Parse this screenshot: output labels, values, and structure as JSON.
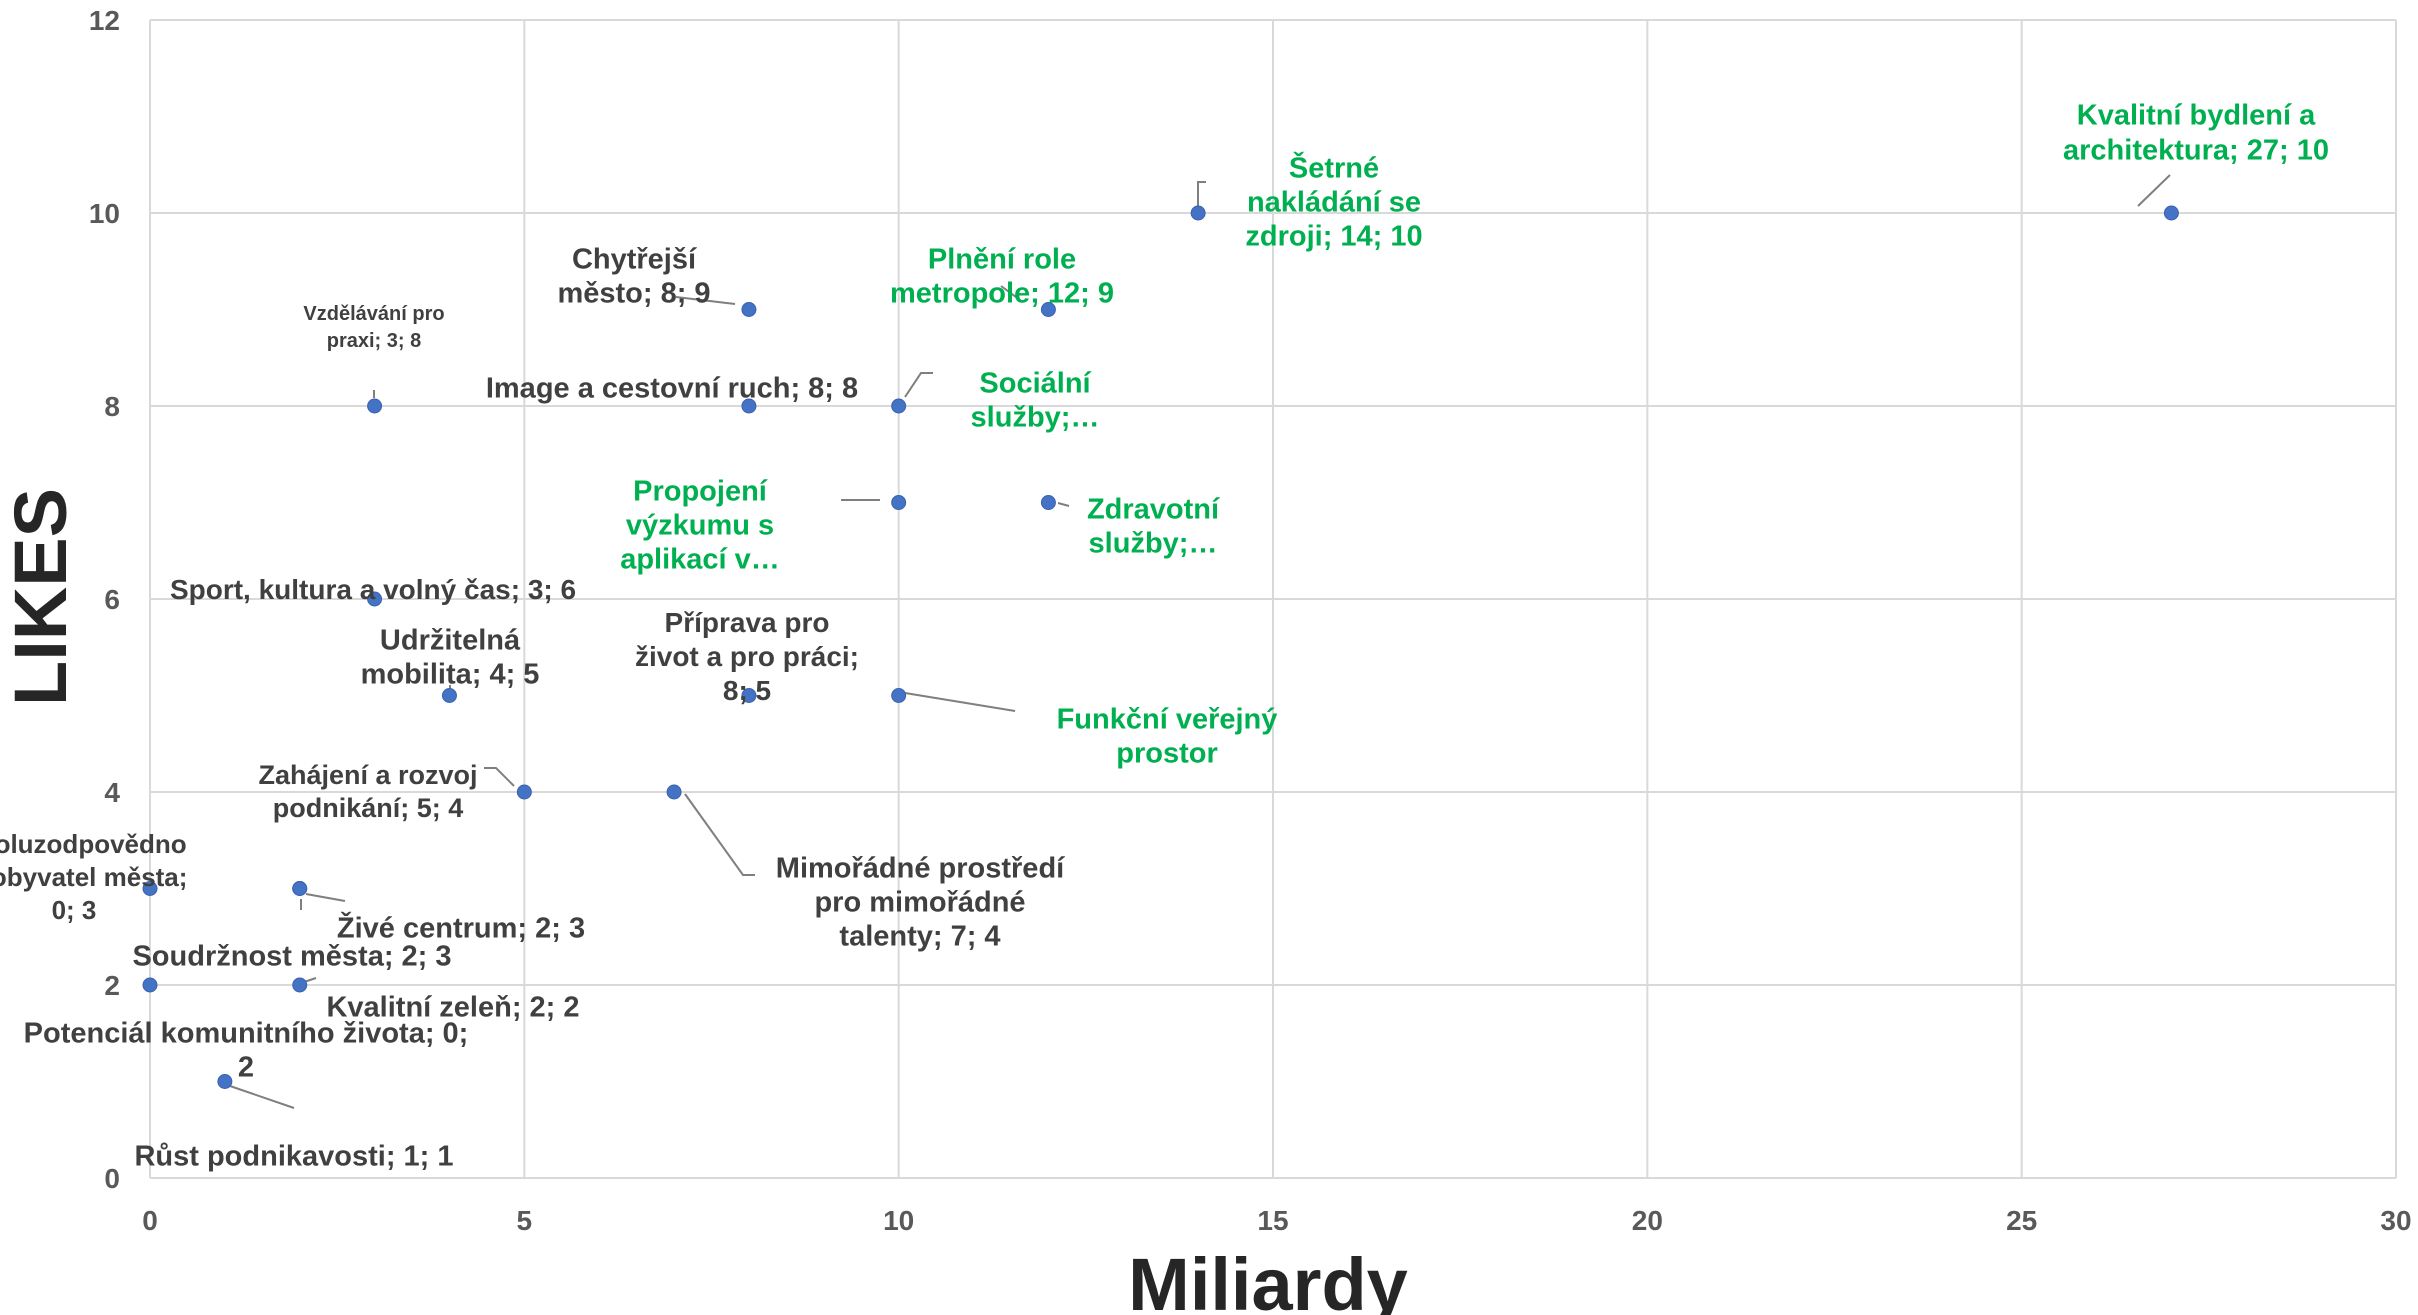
{
  "chart_data": {
    "type": "scatter",
    "xlabel": "Miliardy",
    "ylabel": "LIKES",
    "xlim": [
      0,
      30
    ],
    "ylim": [
      0,
      12
    ],
    "xticks": [
      0,
      5,
      10,
      15,
      20,
      25,
      30
    ],
    "yticks": [
      0,
      2,
      4,
      6,
      8,
      10,
      12
    ],
    "grid": true,
    "colors": {
      "marker": "#4472C4",
      "grid": "#D9D9D9",
      "label_default": "#404040",
      "label_highlight": "#00B050",
      "leader": "#7F7F7F"
    },
    "points": [
      {
        "x": 27,
        "y": 10,
        "label": [
          "Kvalitní bydlení a",
          "architektura; 27; 10"
        ],
        "highlight": true
      },
      {
        "x": 14,
        "y": 10,
        "label": [
          "Šetrné",
          "nakládání se",
          "zdroji; 14; 10"
        ],
        "highlight": true
      },
      {
        "x": 12,
        "y": 9,
        "label": [
          "Plnění role",
          "metropole; 12; 9"
        ],
        "highlight": true
      },
      {
        "x": 8,
        "y": 9,
        "label": [
          "Chytřejší",
          "město; 8; 9"
        ],
        "highlight": false
      },
      {
        "x": 3,
        "y": 8,
        "label": [
          "Vzdělávání pro",
          "praxi; 3; 8"
        ],
        "highlight": false
      },
      {
        "x": 8,
        "y": 8,
        "label": [
          "Image a cestovní ruch; 8; 8"
        ],
        "highlight": false
      },
      {
        "x": 10,
        "y": 8,
        "label": [
          "Sociální",
          "služby;…"
        ],
        "highlight": true
      },
      {
        "x": 10,
        "y": 7,
        "label": [
          "Propojení",
          "výzkumu s",
          "aplikací v…"
        ],
        "highlight": true
      },
      {
        "x": 12,
        "y": 7,
        "label": [
          "Zdravotní",
          "služby;…"
        ],
        "highlight": true
      },
      {
        "x": 3,
        "y": 6,
        "label": [
          "Sport, kultura a volný čas; 3; 6"
        ],
        "highlight": false
      },
      {
        "x": 4,
        "y": 5,
        "label": [
          "Udržitelná",
          "mobilita; 4; 5"
        ],
        "highlight": false
      },
      {
        "x": 8,
        "y": 5,
        "label": [
          "Příprava pro",
          "život a pro práci;",
          "8; 5"
        ],
        "highlight": false
      },
      {
        "x": 10,
        "y": 5,
        "label": [
          "Funkční veřejný",
          "prostor"
        ],
        "highlight": true
      },
      {
        "x": 5,
        "y": 4,
        "label": [
          "Zahájení a rozvoj",
          "podnikání; 5; 4"
        ],
        "highlight": false
      },
      {
        "x": 7,
        "y": 4,
        "label": [
          "Mimořádné prostředí",
          "pro mimořádné",
          "talenty; 7; 4"
        ],
        "highlight": false
      },
      {
        "x": 0,
        "y": 3,
        "label": [
          "Spoluzodpovědno",
          "st obyvatel města;",
          "0; 3"
        ],
        "highlight": false
      },
      {
        "x": 2,
        "y": 3,
        "label": [
          "Živé centrum; 2; 3"
        ],
        "highlight": false
      },
      {
        "x": 2,
        "y": 3,
        "label": [
          "Soudržnost města; 2; 3"
        ],
        "highlight": false
      },
      {
        "x": 0,
        "y": 2,
        "label": [
          "Potenciál komunitního života; 0;",
          "2"
        ],
        "highlight": false
      },
      {
        "x": 2,
        "y": 2,
        "label": [
          "Kvalitní zeleň; 2; 2"
        ],
        "highlight": false
      },
      {
        "x": 1,
        "y": 1,
        "label": [
          "Růst podnikavosti; 1; 1"
        ],
        "highlight": false
      }
    ]
  }
}
